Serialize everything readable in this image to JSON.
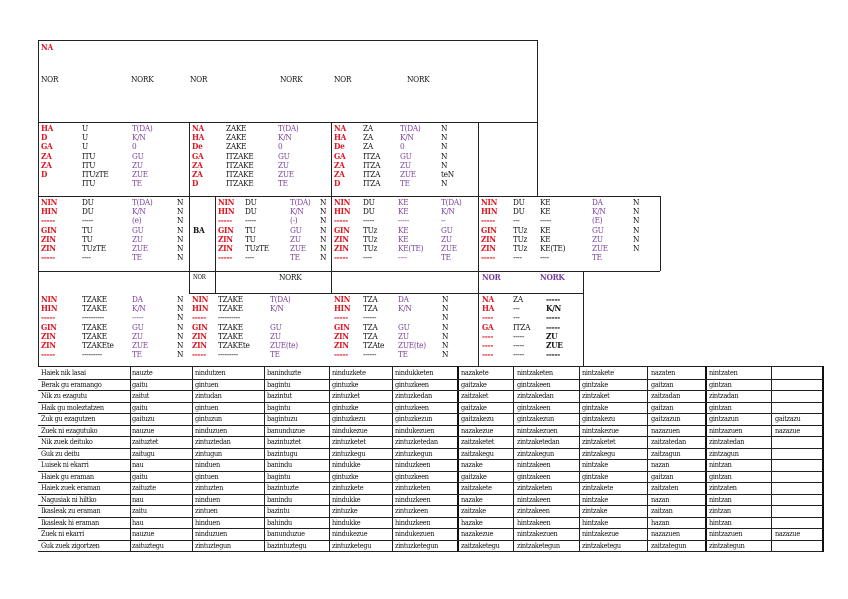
{
  "top": {
    "title": "NA",
    "heads": [
      "NOR",
      "NORK",
      "NOR",
      "NORK",
      "NOR",
      "NORK"
    ]
  },
  "b1": {
    "c1": "HA\nD\nGA\nZA\nZA\nD",
    "c2": "U\nU\nU\nITU\nITU\nITUzTE\nITU",
    "c3": "T(DA)\nK/N\n0\nGU\nZU\nZUE\nTE",
    "c4": "NA\nHA\nDe\nGA\nZA\nZA\nD",
    "c5": "ZAKE\nZAKE\nZAKE\nITZAKE\nITZAKE\nITZAKE\nITZAKE",
    "c6": "T(DA)\nK/N\n0\nGU\nZU\nZUE\nTE",
    "c7": "NA\nHA\nDe\nGA\nZA\nZA\nD",
    "c8": "ZA\nZA\nZA\nITZA\nITZA\nITZA\nITZA",
    "c9": "T(DA)\nK/N\n0\nGU\nZU\nZUE\nTE",
    "c10": "N\nN\nN\nN\nN\nteN\nN"
  },
  "b2": {
    "c1": "NIN\nHIN\n-----\nGIN\nZIN\nZIN\n-----",
    "c2": "DU\nDU\n-----\nTU\nTU\nTUzTE\n----",
    "c3": "T(DA)\nK/N\n(e)\nGU\nZU\nZUE\nTE",
    "c4": "N\nN\nN\nN\nN\nN\nN",
    "ba": "BA",
    "c5": "NIN\nHIN\n-----\nGIN\nZIN\nZIN\n-----",
    "c6": "DU\nDU\n-----\nTU\nTU\nTUzTE\n----",
    "c7": "T(DA)\nK/N\n(-)\nGU\nZU\nZUE\nTE",
    "c8": "N\nN\nN\nN\nN\nN\nN",
    "c9": "NIN\nHIN\n-----\nGIN\nZIN\nZIN\n-----",
    "c10": "DU\nDU\n-----\nTUz\nTUz\nTUz\n----",
    "c11": "KE\nKE\n-----\nKE\nKE\nKE(TE)\n----",
    "c12": "T(DA)\nK/N\n--\nGU\nZU\nZUE\nTE",
    "c13": "NIN\nHIN\n-----\nGIN\nZIN\nZIN\n-----",
    "c14": "DU\nDU\n---\nTUz\nTUz\nTUz\n----",
    "c15": "KE\nKE\n-----\nKE\nKE\nKE(TE)\n----",
    "c16": "DA\nK/N\n(E)\nGU\nZU\nZUE\nTE",
    "c17": "N\nN\nN\nN\nN\nN",
    "nor": "NOR",
    "nork": "NORK",
    "nor2": "NOR",
    "nork2": "NORK"
  },
  "b3": {
    "c1": "NIN\nHIN\n-----\nGIN\nZIN\nZIN\n-----",
    "c2": "TZAKE\nTZAKE\n----------\nTZAKE\nTZAKE\nTZAKEte\n---------",
    "c3": "DA\nK/N\n-----\nGU\nZU\nZUE\nTE",
    "c4": "N\nN\nN\nN\nN\nN\nN",
    "c5": "NIN\nHIN\n-----\nGIN\nZIN\nZIN\n-----",
    "c6": "TZAKE\nTZAKE\n----------\nTZAKE\nTZAKE\nTZAKEte\n---------",
    "c7": "T(DA)\nK/N\n\nGU\nZU\nZUE(te)\nTE",
    "c8": "NIN\nHIN\n-----\nGIN\nZIN\nZIN\n-----",
    "c9": "TZA\nTZA\n------\nTZA\nTZA\nTZAte\n------",
    "c10": "DA\nK/N\n\nGU\nZU\nZUE(te)\nTE",
    "c11": "N\nN\nN\nN\nN\nN\nN",
    "c12": "NA\nHA\n----\nGA\n----\n----\n----",
    "c13": "ZA\n---\n---\nITZA\n-----\n-----\n-----",
    "c14": "-----\nK/N\n-----\n-----\nZU\nZUE\n-----"
  },
  "grid": {
    "rows": [
      [
        "Haiek nik lasai",
        "nauzte",
        "nindutzen",
        "baninduzte",
        "ninduzkete",
        "nindukketen",
        "nazakete",
        "nintzaketen",
        "nintzakete",
        "nazaten",
        "nintzaten",
        ""
      ],
      [
        "Berak gu eramango",
        "gaitu",
        "gintuen",
        "bagintu",
        "gintuzke",
        "gintuzkeen",
        "gaitzake",
        "gintzakeen",
        "gintzake",
        "gaitzan",
        "gintzan",
        ""
      ],
      [
        "Nik zu ezagutu",
        "zaitut",
        "zintudan",
        "bazintut",
        "zintuzket",
        "zintuzkedan",
        "zaitzaket",
        "zintzakedan",
        "zintzaket",
        "zaitzadan",
        "zintzadan",
        ""
      ],
      [
        "Haik gu moleztatzen",
        "gaitu",
        "gintuen",
        "bagintu",
        "gintuzke",
        "gintuzkeen",
        "gaitzake",
        "gintzakeen",
        "gintzake",
        "gaitzan",
        "gintzan",
        ""
      ],
      [
        "Zuk gu ezagutzen",
        "gaituzu",
        "gintuzun",
        "bagintuzu",
        "gintuzkezu",
        "gintuzkezun",
        "gaitzakezu",
        "gintzakezun",
        "gintzakezu",
        "gaitzazun",
        "gintzazun",
        "gaitzazu"
      ],
      [
        "Zuek ni ezagutuko",
        "nauzue",
        "ninduzuen",
        "banunduzue",
        "nindukezue",
        "nindukezuen",
        "nazakezue",
        "nintzakezuen",
        "nintzakezue",
        "nazazuen",
        "nintzazuen",
        "nazazue"
      ],
      [
        "Nik zuek deituko",
        "zaituztet",
        "zintuztedan",
        "bazintuztet",
        "zintuzketet",
        "zintuzketedan",
        "zaitzaketet",
        "zintzaketedan",
        "zintzaketet",
        "zaitzatedan",
        "zintzatedan",
        ""
      ],
      [
        "Guk zu deitu",
        "zaitugu",
        "zintugun",
        "bazintugu",
        "zintuzkegu",
        "zintuzkegun",
        "zaitzakegu",
        "zintzakegun",
        "zintzakegu",
        "zaitzagun",
        "zintzagun",
        ""
      ],
      [
        "Luisek ni ekarri",
        "nau",
        "ninduen",
        "banindu",
        "nindukke",
        "ninduzkeen",
        "nazake",
        "nintzakeen",
        "nintzake",
        "nazan",
        "nintzan",
        ""
      ],
      [
        "Haiek gu eraman",
        "gaitu",
        "gintuen",
        "bagintu",
        "gintuzke",
        "gintuzkeen",
        "gaitzake",
        "gintzakeen",
        "gintzake",
        "gaitzan",
        "gintzan",
        ""
      ],
      [
        "Haiek zuek eraman",
        "zaituzte",
        "zintuzten",
        "bazintuzte",
        "zintuzkete",
        "zintuzketen",
        "zaitzakete",
        "zintzaketen",
        "zintzakete",
        "zaitzaten",
        "zintzaten",
        ""
      ],
      [
        "Nagusiak ni hiltko",
        "nau",
        "ninduen",
        "banindu",
        "nindukke",
        "ninduzkeen",
        "nazake",
        "nintzakeen",
        "nintzake",
        "nazan",
        "nintzan",
        ""
      ],
      [
        "Ikasleak zu eraman",
        "zaitu",
        "zintuen",
        "bazintu",
        "zintuzke",
        "zintuzkeen",
        "zaitzake",
        "zintzakeen",
        "zintzake",
        "zaitzan",
        "zintzan",
        ""
      ],
      [
        "Ikasleak hi eraman",
        "hau",
        "hinduen",
        "bahindu",
        "hindukke",
        "hinduzkeen",
        "hazake",
        "hintzakeen",
        "hintzake",
        "hazan",
        "hintzan",
        ""
      ],
      [
        "Zuek ni ekarri",
        "nauzue",
        "ninduzuen",
        "banunduzue",
        "nindukezue",
        "nindukezuen",
        "nazakezue",
        "nintzakezuen",
        "nintzakezue",
        "nazazuen",
        "nintzazuen",
        "nazazue"
      ],
      [
        "Guk zuek zigortzen",
        "zaituztegu",
        "zintuztegun",
        "bazintuztegu",
        "zintuzketegu",
        "zintuzketegun",
        "zaitzaketegu",
        "zintzaketegun",
        "zintzaketegu",
        "zaitzategun",
        "zintzategun",
        ""
      ]
    ]
  }
}
